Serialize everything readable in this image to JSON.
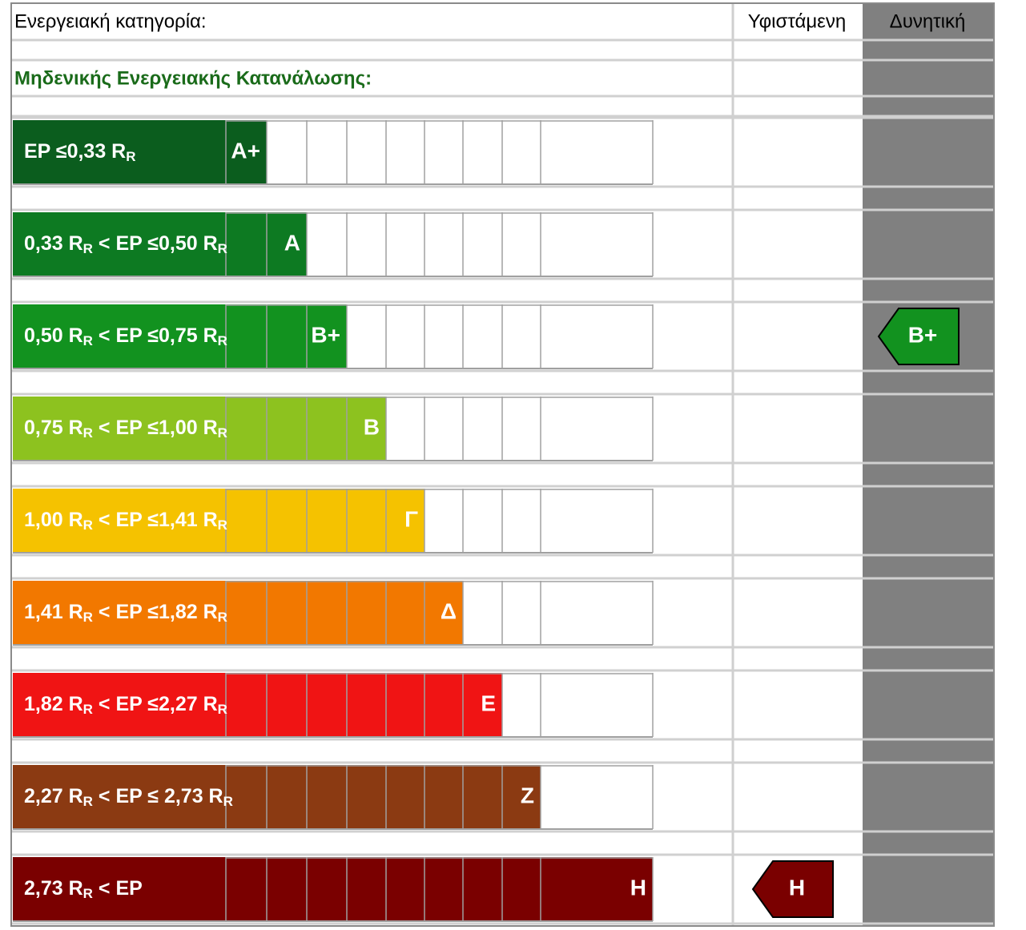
{
  "header": {
    "category": "Ενεργειακή κατηγορία:",
    "current_column": "Υφιστάμενη",
    "potential_column": "Δυνητική"
  },
  "subtitle": "Μηδενικής Ενεργειακής Κατανάλωσης:",
  "classes": [
    {
      "label": [
        "EP ≤0,33 R",
        "R"
      ],
      "letter": "A+",
      "color": "#0b5d1e"
    },
    {
      "label": [
        "0,33 R",
        "R",
        " < EP ≤0,50 R",
        "R"
      ],
      "letter": "A",
      "color": "#0d7a22"
    },
    {
      "label": [
        "0,50 R",
        "R",
        " < EP ≤0,75 R",
        "R"
      ],
      "letter": "B+",
      "color": "#12921f"
    },
    {
      "label": [
        "0,75 R",
        "R",
        " < EP ≤1,00 R",
        "R"
      ],
      "letter": "B",
      "color": "#8dc21f"
    },
    {
      "label": [
        "1,00 R",
        "R",
        " < EP ≤1,41 R",
        "R"
      ],
      "letter": "Γ",
      "color": "#f5c200"
    },
    {
      "label": [
        "1,41 R",
        "R",
        " < EP ≤1,82 R",
        "R"
      ],
      "letter": "Δ",
      "color": "#f27800"
    },
    {
      "label": [
        "1,82 R",
        "R",
        " < EP ≤2,27 R",
        "R"
      ],
      "letter": "E",
      "color": "#f01414"
    },
    {
      "label": [
        "2,27 R",
        "R",
        " <  EP ≤ 2,73 R",
        "R"
      ],
      "letter": "Z",
      "color": "#8b3a12"
    },
    {
      "label": [
        "2,73 R",
        "R",
        " < EP"
      ],
      "letter": "H",
      "color": "#7a0000"
    }
  ],
  "current": "H",
  "potential": "B+"
}
